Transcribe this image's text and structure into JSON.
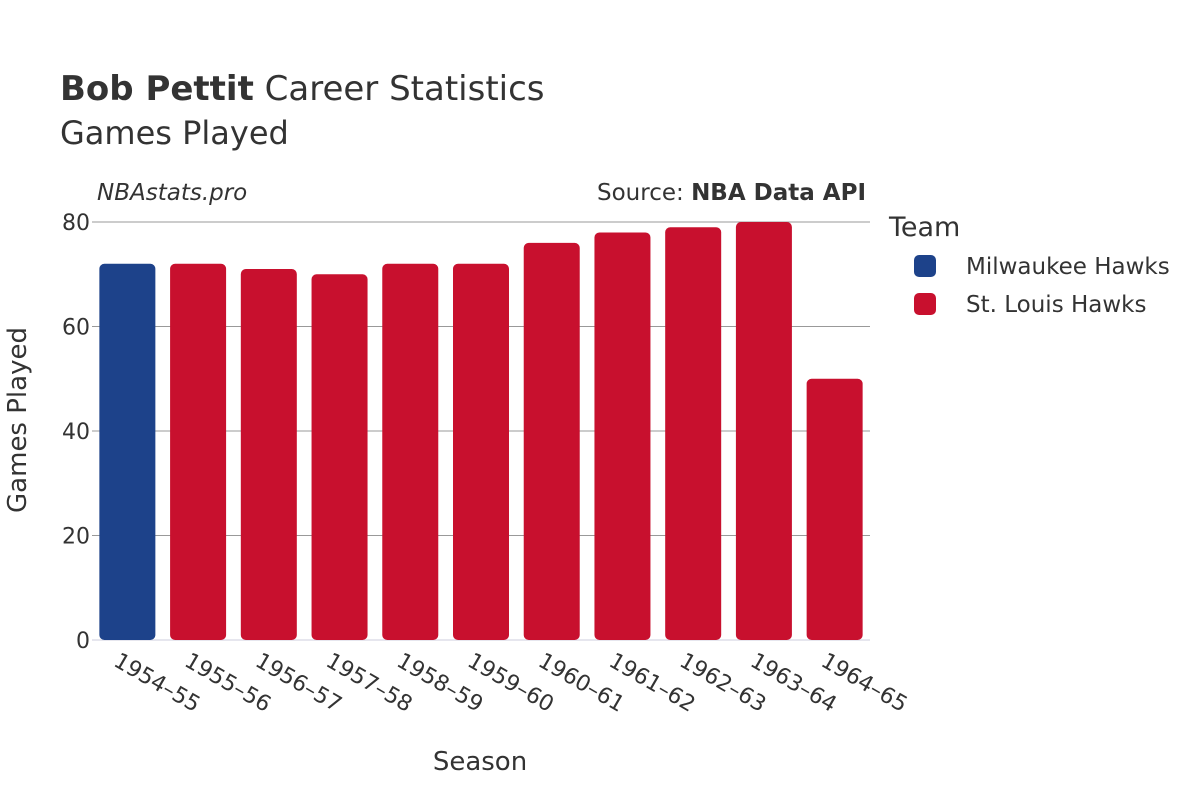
{
  "header": {
    "title_bold": "Bob Pettit",
    "title_rest": " Career Statistics",
    "subtitle": "Games Played",
    "watermark": "NBAstats.pro",
    "source_prefix": "Source: ",
    "source_bold": "NBA Data API"
  },
  "legend": {
    "title": "Team",
    "items": [
      {
        "label": "Milwaukee Hawks",
        "color": "#1d428a"
      },
      {
        "label": "St. Louis Hawks",
        "color": "#c8102e"
      }
    ]
  },
  "chart_data": {
    "type": "bar",
    "xlabel": "Season",
    "ylabel": "Games Played",
    "ylim": [
      0,
      80
    ],
    "yticks": [
      0,
      20,
      40,
      60,
      80
    ],
    "grid": true,
    "legend_position": "right",
    "categories": [
      "1954–55",
      "1955–56",
      "1956–57",
      "1957–58",
      "1958–59",
      "1959–60",
      "1960–61",
      "1961–62",
      "1962–63",
      "1963–64",
      "1964–65"
    ],
    "values": [
      72,
      72,
      71,
      70,
      72,
      72,
      76,
      78,
      79,
      80,
      50
    ],
    "teams": [
      "Milwaukee Hawks",
      "St. Louis Hawks",
      "St. Louis Hawks",
      "St. Louis Hawks",
      "St. Louis Hawks",
      "St. Louis Hawks",
      "St. Louis Hawks",
      "St. Louis Hawks",
      "St. Louis Hawks",
      "St. Louis Hawks",
      "St. Louis Hawks"
    ]
  }
}
